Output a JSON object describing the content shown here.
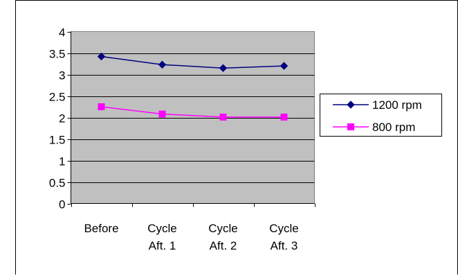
{
  "chart_data": {
    "type": "line",
    "title": "",
    "xlabel": "",
    "ylabel": "",
    "categories": [
      [
        "Before"
      ],
      [
        "Cycle",
        "Aft. 1"
      ],
      [
        "Cycle",
        "Aft. 2"
      ],
      [
        "Cycle",
        "Aft. 3"
      ]
    ],
    "yticks": [
      "0",
      "0.5",
      "1",
      "1.5",
      "2",
      "2.5",
      "3",
      "3.5",
      "4"
    ],
    "ylim": [
      0,
      4
    ],
    "grid": true,
    "legend_position": "right",
    "plot_background": "#C0C0C0",
    "series": [
      {
        "name": "1200 rpm",
        "values": [
          3.42,
          3.23,
          3.15,
          3.2
        ],
        "color": "#000080",
        "marker": "diamond"
      },
      {
        "name": "800 rpm",
        "values": [
          2.25,
          2.08,
          2.01,
          2.01
        ],
        "color": "#FF00FF",
        "marker": "square"
      }
    ]
  }
}
